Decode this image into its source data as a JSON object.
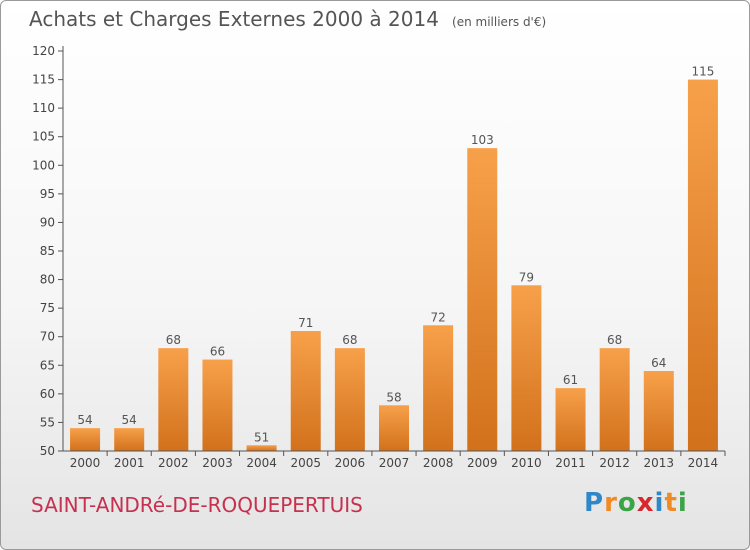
{
  "header": {
    "title": "Achats et Charges Externes 2000 à 2014",
    "unit": "(en milliers d'€)"
  },
  "footer": {
    "commune": "SAINT-ANDRé-DE-ROQUEPERTUIS",
    "logo": {
      "letters": [
        "P",
        "r",
        "o",
        "x",
        "i",
        "t",
        "i"
      ],
      "colors": [
        "#2f86c9",
        "#f08a23",
        "#3aa447",
        "#d9262c",
        "#2f86c9",
        "#f08a23",
        "#3aa447"
      ]
    }
  },
  "chart_data": {
    "type": "bar",
    "categories": [
      "2000",
      "2001",
      "2002",
      "2003",
      "2004",
      "2005",
      "2006",
      "2007",
      "2008",
      "2009",
      "2010",
      "2011",
      "2012",
      "2013",
      "2014"
    ],
    "values": [
      54,
      54,
      68,
      66,
      51,
      71,
      68,
      58,
      72,
      103,
      79,
      61,
      68,
      64,
      115
    ],
    "ylim": [
      50,
      120
    ],
    "yticks": [
      50,
      55,
      60,
      65,
      70,
      75,
      80,
      85,
      90,
      95,
      100,
      105,
      110,
      115,
      120
    ],
    "grid": false,
    "bar_color_top": "#f7a04a",
    "bar_color_bottom": "#d2711c"
  }
}
